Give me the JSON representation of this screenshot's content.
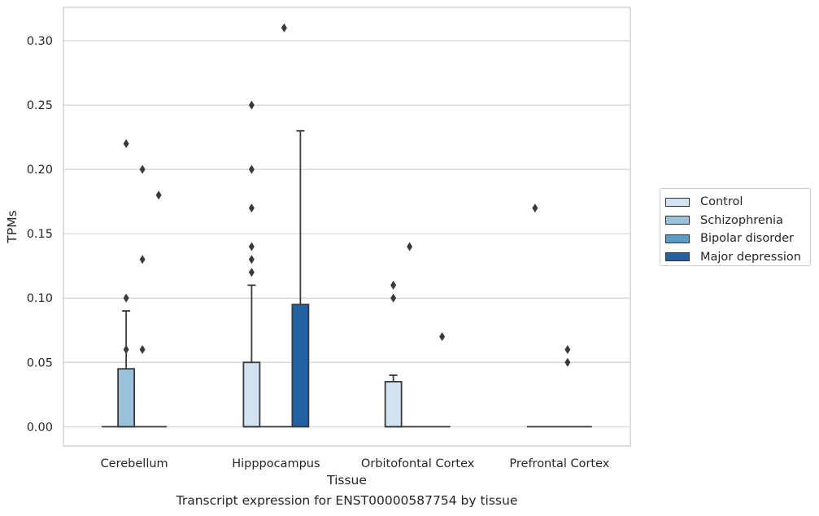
{
  "chart_data": {
    "type": "box",
    "xlabel": "Tissue",
    "ylabel": "TPMs",
    "ylim": [
      -0.015,
      0.326
    ],
    "yticks": [
      "0.00",
      "0.05",
      "0.10",
      "0.15",
      "0.20",
      "0.25",
      "0.30"
    ],
    "ytick_values": [
      0,
      0.05,
      0.1,
      0.15,
      0.2,
      0.25,
      0.3
    ],
    "grid": "horizontal",
    "legend_position": "right",
    "categories": [
      "Cerebellum",
      "Hipppocampus",
      "Orbitofontal Cortex",
      "Prefrontal Cortex"
    ],
    "series": [
      {
        "name": "Control",
        "color": "#d3e3f2",
        "boxes": [
          {
            "q1": 0,
            "median": 0,
            "q3": 0,
            "whislo": 0,
            "whishi": 0,
            "fliers": []
          },
          {
            "q1": 0,
            "median": 0,
            "q3": 0.05,
            "whislo": 0,
            "whishi": 0.11,
            "fliers": [
              0.12,
              0.13,
              0.14,
              0.17,
              0.2,
              0.25
            ]
          },
          {
            "q1": 0,
            "median": 0,
            "q3": 0.035,
            "whislo": 0,
            "whishi": 0.04,
            "fliers": [
              0.1,
              0.11
            ]
          },
          {
            "q1": 0,
            "median": 0,
            "q3": 0,
            "whislo": 0,
            "whishi": 0,
            "fliers": [
              0.17
            ]
          }
        ]
      },
      {
        "name": "Schizophrenia",
        "color": "#9ac2db",
        "boxes": [
          {
            "q1": 0,
            "median": 0,
            "q3": 0.045,
            "whislo": 0,
            "whishi": 0.09,
            "fliers": [
              0.06,
              0.1,
              0.22
            ]
          },
          {
            "q1": 0,
            "median": 0,
            "q3": 0,
            "whislo": 0,
            "whishi": 0,
            "fliers": []
          },
          {
            "q1": 0,
            "median": 0,
            "q3": 0,
            "whislo": 0,
            "whishi": 0,
            "fliers": [
              0.14
            ]
          },
          {
            "q1": 0,
            "median": 0,
            "q3": 0,
            "whislo": 0,
            "whishi": 0,
            "fliers": []
          }
        ]
      },
      {
        "name": "Bipolar disorder",
        "color": "#5b9cc6",
        "boxes": [
          {
            "q1": 0,
            "median": 0,
            "q3": 0,
            "whislo": 0,
            "whishi": 0,
            "fliers": [
              0.06,
              0.13,
              0.2
            ]
          },
          {
            "q1": 0,
            "median": 0,
            "q3": 0,
            "whislo": 0,
            "whishi": 0,
            "fliers": [
              0.31
            ]
          },
          {
            "q1": 0,
            "median": 0,
            "q3": 0,
            "whislo": 0,
            "whishi": 0,
            "fliers": []
          },
          {
            "q1": 0,
            "median": 0,
            "q3": 0,
            "whislo": 0,
            "whishi": 0,
            "fliers": [
              0.05,
              0.06
            ]
          }
        ]
      },
      {
        "name": "Major depression",
        "color": "#2361a0",
        "boxes": [
          {
            "q1": 0,
            "median": 0,
            "q3": 0,
            "whislo": 0,
            "whishi": 0,
            "fliers": [
              0.18
            ]
          },
          {
            "q1": 0,
            "median": 0,
            "q3": 0.095,
            "whislo": 0,
            "whishi": 0.23,
            "fliers": []
          },
          {
            "q1": 0,
            "median": 0,
            "q3": 0,
            "whislo": 0,
            "whishi": 0,
            "fliers": [
              0.07
            ]
          },
          {
            "q1": 0,
            "median": 0,
            "q3": 0,
            "whislo": 0,
            "whishi": 0,
            "fliers": []
          }
        ]
      }
    ]
  },
  "caption": "Transcript expression for ENST00000587754 by tissue"
}
